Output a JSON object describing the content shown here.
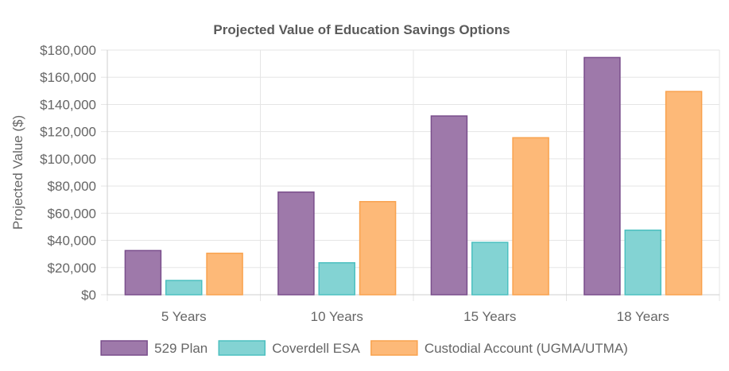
{
  "chart_data": {
    "type": "bar",
    "title": "Projected Value of Education Savings Options",
    "xlabel": "",
    "ylabel": "Projected Value ($)",
    "categories": [
      "5 Years",
      "10 Years",
      "15 Years",
      "18 Years"
    ],
    "ylim": [
      0,
      180000
    ],
    "yticks": [
      0,
      20000,
      40000,
      60000,
      80000,
      100000,
      120000,
      140000,
      160000,
      180000
    ],
    "ytick_labels": [
      "$0",
      "$20,000",
      "$40,000",
      "$60,000",
      "$80,000",
      "$100,000",
      "$120,000",
      "$140,000",
      "$160,000",
      "$180,000"
    ],
    "grid": true,
    "legend_position": "bottom",
    "series": [
      {
        "name": "529 Plan",
        "values": [
          32500,
          75500,
          131500,
          174500
        ],
        "fill": "#9e79aa",
        "stroke": "#7a4e8c"
      },
      {
        "name": "Coverdell ESA",
        "values": [
          10500,
          23500,
          38500,
          47500
        ],
        "fill": "#83d3d3",
        "stroke": "#4cc0c0"
      },
      {
        "name": "Custodial Account (UGMA/UTMA)",
        "values": [
          30500,
          68500,
          115500,
          149500
        ],
        "fill": "#fdb978",
        "stroke": "#f9a24e"
      }
    ]
  }
}
